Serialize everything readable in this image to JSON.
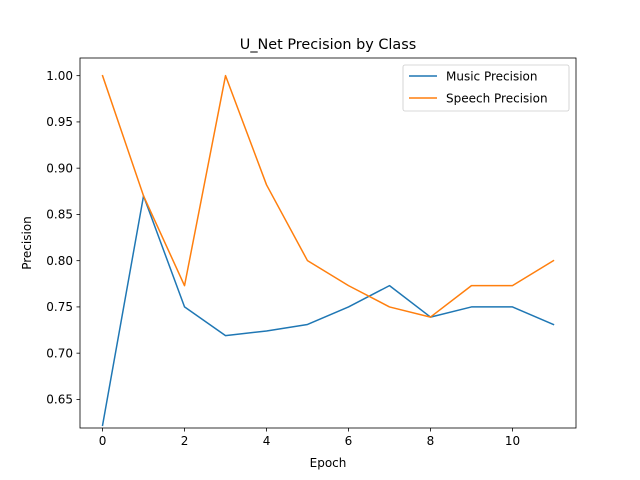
{
  "chart_data": {
    "type": "line",
    "title": "U_Net Precision by Class",
    "xlabel": "Epoch",
    "ylabel": "Precision",
    "x": [
      0,
      1,
      2,
      3,
      4,
      5,
      6,
      7,
      8,
      9,
      10,
      11
    ],
    "xlim": [
      -0.55,
      11.55
    ],
    "ylim": [
      0.6191,
      1.0191
    ],
    "xticks": [
      0,
      2,
      4,
      6,
      8,
      10
    ],
    "yticks": [
      0.65,
      0.7,
      0.75,
      0.8,
      0.85,
      0.9,
      0.95,
      1.0
    ],
    "xtick_labels": [
      "0",
      "2",
      "4",
      "6",
      "8",
      "10"
    ],
    "ytick_labels": [
      "0.65",
      "0.70",
      "0.75",
      "0.80",
      "0.85",
      "0.90",
      "0.95",
      "1.00"
    ],
    "grid": false,
    "legend_position": "top-right",
    "series": [
      {
        "name": "Music Precision",
        "color": "#1f77b4",
        "values": [
          0.622,
          0.87,
          0.75,
          0.719,
          0.724,
          0.731,
          0.75,
          0.773,
          0.739,
          0.75,
          0.75,
          0.731
        ]
      },
      {
        "name": "Speech Precision",
        "color": "#ff7f0e",
        "values": [
          1.0,
          0.87,
          0.773,
          1.0,
          0.882,
          0.8,
          0.773,
          0.75,
          0.739,
          0.773,
          0.773,
          0.8
        ]
      }
    ]
  }
}
